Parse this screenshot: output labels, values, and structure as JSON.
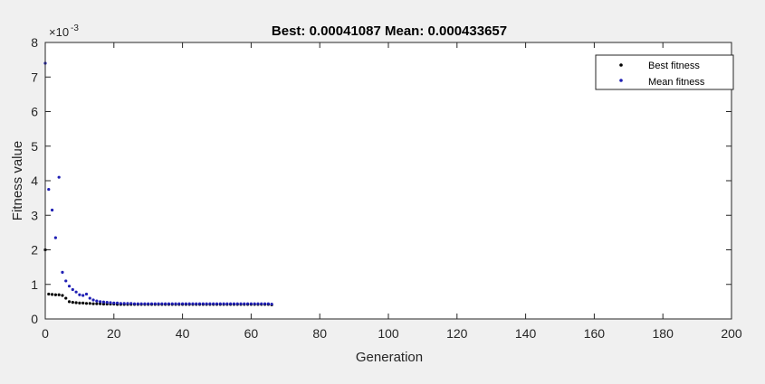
{
  "chart_data": {
    "type": "scatter",
    "title": "Best: 0.00041087 Mean: 0.000433657",
    "xlabel": "Generation",
    "ylabel": "Fitness value",
    "y_multiplier": "×10",
    "y_exponent": "-3",
    "xlim": [
      0,
      200
    ],
    "ylim": [
      0,
      8
    ],
    "x_ticks": [
      0,
      20,
      40,
      60,
      80,
      100,
      120,
      140,
      160,
      180,
      200
    ],
    "y_ticks": [
      0,
      1,
      2,
      3,
      4,
      5,
      6,
      7,
      8
    ],
    "legend_position": "top-right",
    "series": [
      {
        "name": "Best fitness",
        "color": "#000000",
        "x": [
          0,
          1,
          2,
          3,
          4,
          5,
          6,
          7,
          8,
          9,
          10,
          11,
          12,
          13,
          14,
          15,
          16,
          17,
          18,
          19,
          20,
          21,
          22,
          23,
          24,
          25,
          26,
          27,
          28,
          29,
          30,
          31,
          32,
          33,
          34,
          35,
          36,
          37,
          38,
          39,
          40,
          41,
          42,
          43,
          44,
          45,
          46,
          47,
          48,
          49,
          50,
          51,
          52,
          53,
          54,
          55,
          56,
          57,
          58,
          59,
          60,
          61,
          62,
          63,
          64,
          65,
          66
        ],
        "y": [
          2.0,
          0.72,
          0.71,
          0.7,
          0.7,
          0.68,
          0.6,
          0.5,
          0.48,
          0.47,
          0.46,
          0.46,
          0.45,
          0.45,
          0.44,
          0.44,
          0.44,
          0.43,
          0.43,
          0.43,
          0.43,
          0.42,
          0.42,
          0.42,
          0.42,
          0.42,
          0.42,
          0.42,
          0.42,
          0.42,
          0.42,
          0.42,
          0.42,
          0.42,
          0.42,
          0.42,
          0.42,
          0.42,
          0.42,
          0.42,
          0.42,
          0.42,
          0.42,
          0.42,
          0.42,
          0.42,
          0.42,
          0.42,
          0.42,
          0.42,
          0.42,
          0.42,
          0.42,
          0.42,
          0.42,
          0.42,
          0.42,
          0.42,
          0.42,
          0.42,
          0.42,
          0.42,
          0.42,
          0.42,
          0.42,
          0.42,
          0.41
        ]
      },
      {
        "name": "Mean fitness",
        "color": "#1f1fb4",
        "x": [
          0,
          1,
          2,
          3,
          4,
          5,
          6,
          7,
          8,
          9,
          10,
          11,
          12,
          13,
          14,
          15,
          16,
          17,
          18,
          19,
          20,
          21,
          22,
          23,
          24,
          25,
          26,
          27,
          28,
          29,
          30,
          31,
          32,
          33,
          34,
          35,
          36,
          37,
          38,
          39,
          40,
          41,
          42,
          43,
          44,
          45,
          46,
          47,
          48,
          49,
          50,
          51,
          52,
          53,
          54,
          55,
          56,
          57,
          58,
          59,
          60,
          61,
          62,
          63,
          64,
          65,
          66
        ],
        "y": [
          7.4,
          3.75,
          3.15,
          2.35,
          4.1,
          1.35,
          1.1,
          0.95,
          0.85,
          0.78,
          0.7,
          0.68,
          0.72,
          0.6,
          0.55,
          0.52,
          0.5,
          0.49,
          0.48,
          0.47,
          0.46,
          0.46,
          0.45,
          0.45,
          0.45,
          0.45,
          0.44,
          0.44,
          0.44,
          0.44,
          0.44,
          0.44,
          0.44,
          0.44,
          0.44,
          0.44,
          0.44,
          0.44,
          0.44,
          0.44,
          0.44,
          0.44,
          0.44,
          0.44,
          0.44,
          0.44,
          0.44,
          0.44,
          0.44,
          0.44,
          0.44,
          0.44,
          0.44,
          0.44,
          0.44,
          0.44,
          0.44,
          0.44,
          0.44,
          0.44,
          0.44,
          0.44,
          0.44,
          0.44,
          0.44,
          0.44,
          0.43
        ]
      }
    ]
  }
}
